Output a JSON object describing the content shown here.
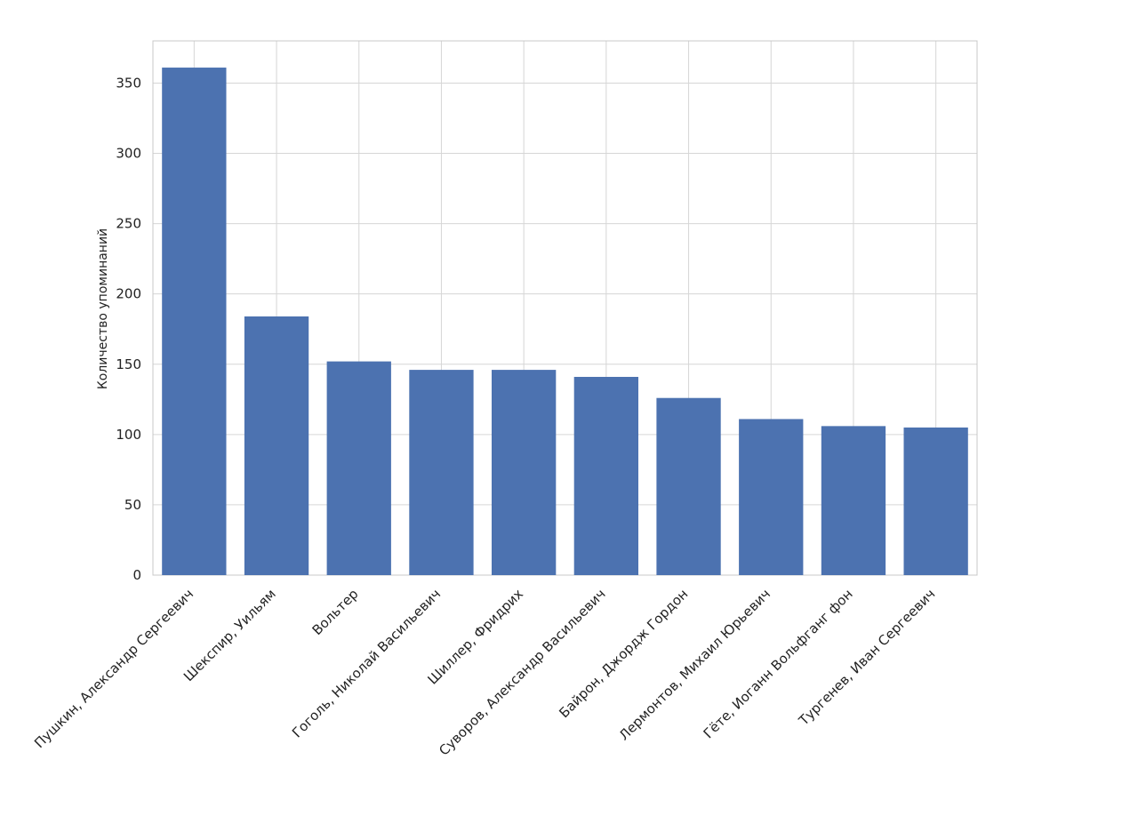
{
  "chart_data": {
    "type": "bar",
    "title": "",
    "xlabel": "",
    "ylabel": "Количество упоминаний",
    "categories": [
      "Пушкин, Александр Сергеевич",
      "Шекспир, Уильям",
      "Вольтер",
      "Гоголь, Николай Васильевич",
      "Шиллер, Фридрих",
      "Суворов, Александр Васильевич",
      "Байрон, Джордж Гордон",
      "Лермонтов, Михаил Юрьевич",
      "Гёте, Иоганн Вольфганг фон",
      "Тургенев, Иван Сергеевич"
    ],
    "values": [
      361,
      184,
      152,
      146,
      146,
      141,
      126,
      111,
      106,
      105
    ],
    "ylim": [
      0,
      380
    ],
    "yticks": [
      0,
      50,
      100,
      150,
      200,
      250,
      300,
      350
    ],
    "grid": true,
    "bar_color": "#4c72b0"
  }
}
